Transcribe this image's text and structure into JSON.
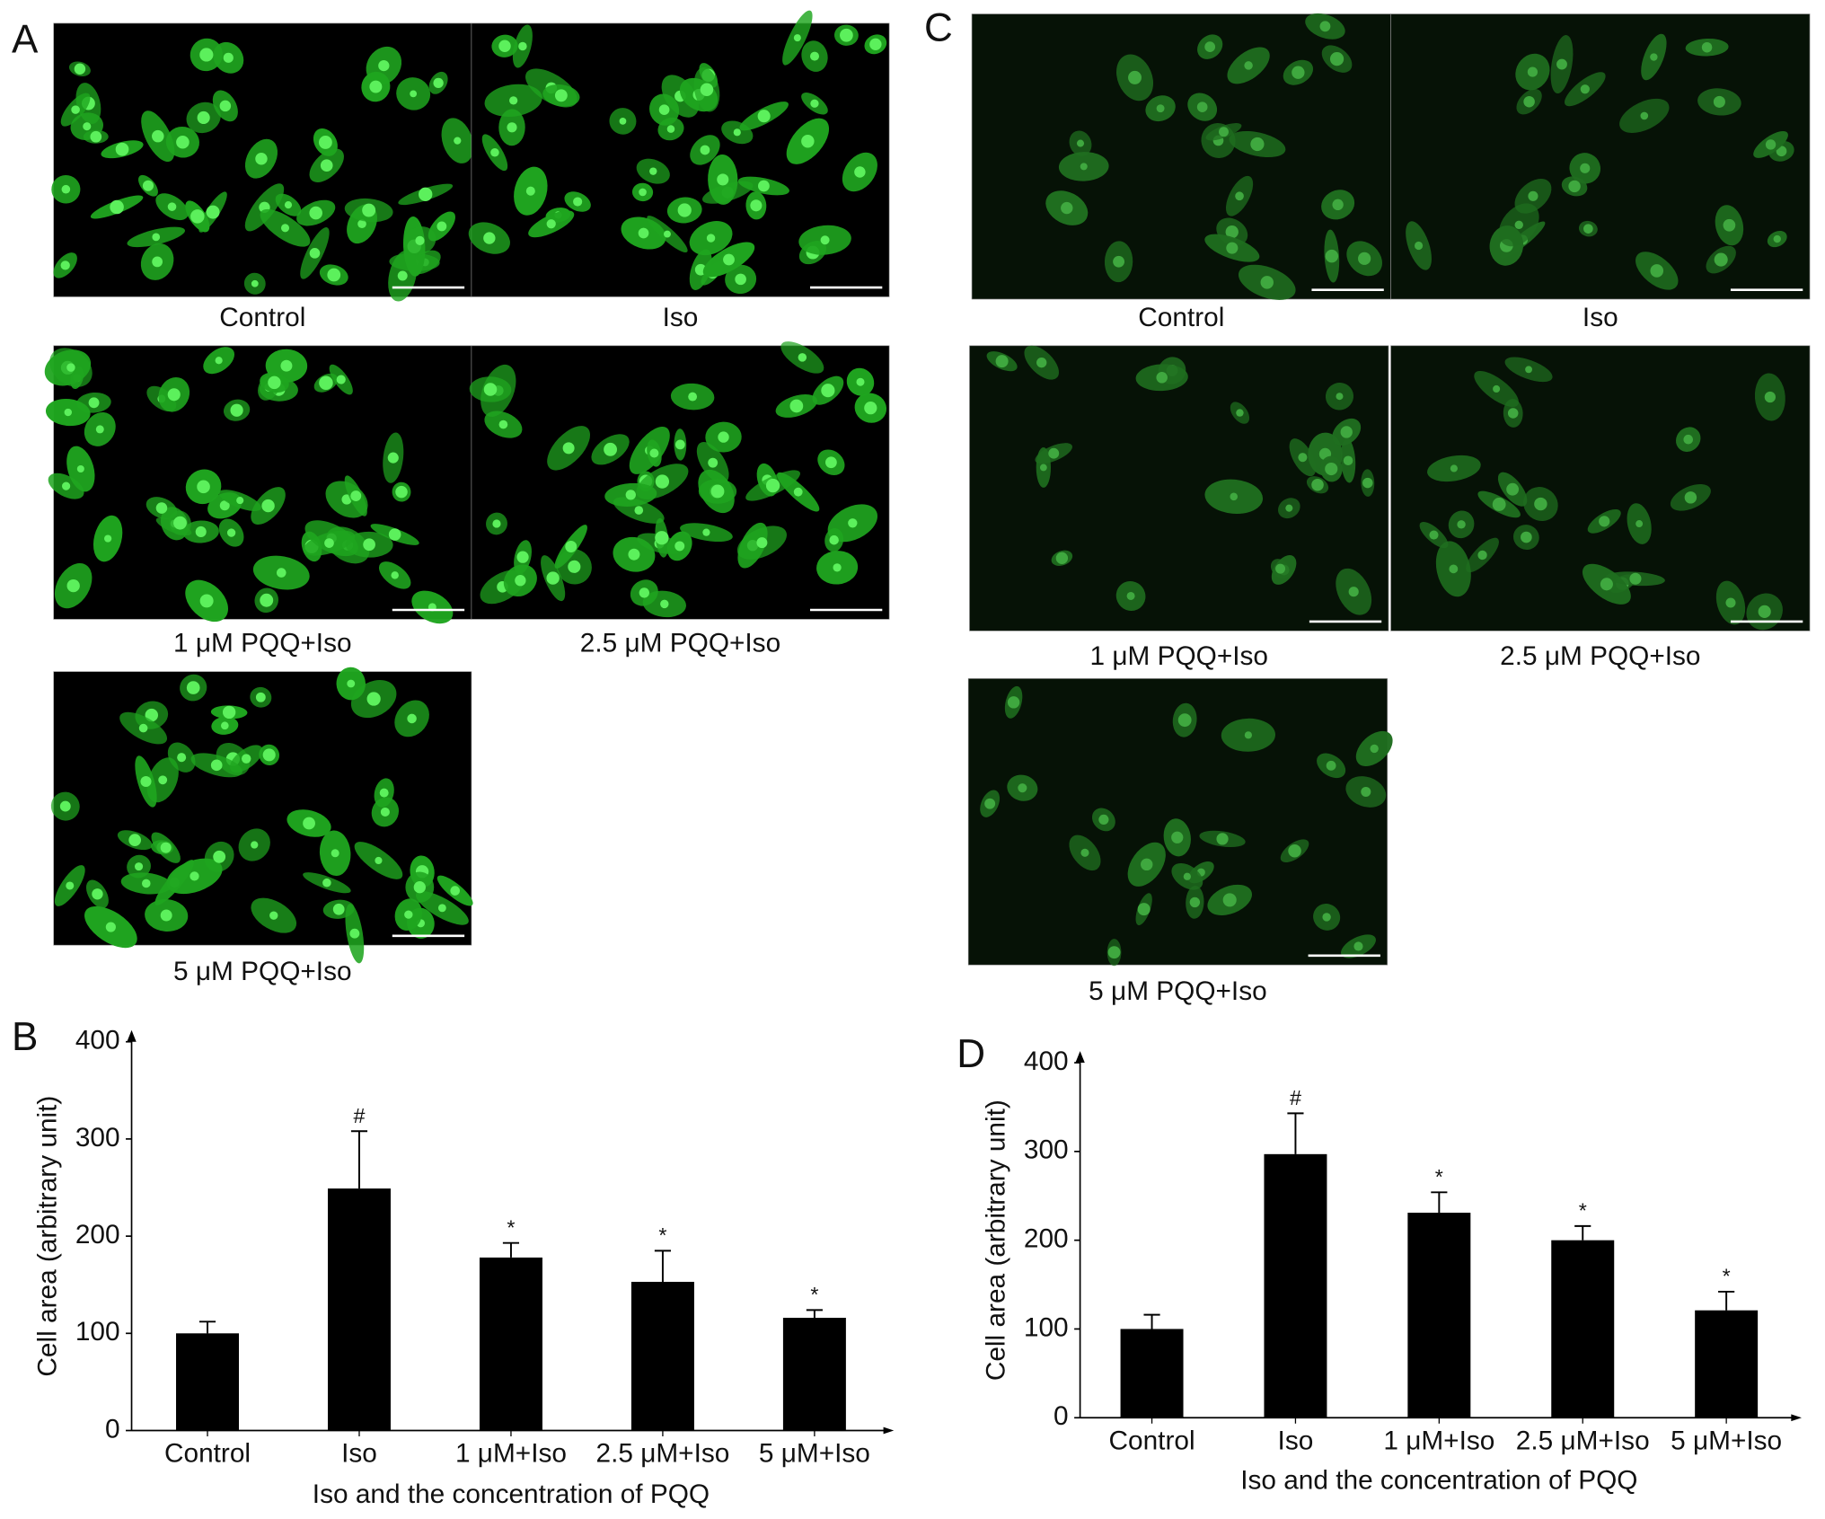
{
  "panels": [
    {
      "label": "A",
      "images": [
        "Control",
        "Iso",
        "1 μM PQQ+Iso",
        "2.5 μM PQQ+Iso",
        "5 μM PQQ+Iso"
      ]
    },
    {
      "label": "C",
      "images": [
        "Control",
        "Iso",
        "1 μM PQQ+Iso",
        "2.5 μM PQQ+Iso",
        "5 μM PQQ+Iso"
      ]
    }
  ],
  "chart_data": [
    {
      "type": "bar",
      "label": "B",
      "ylabel": "Cell area (arbitrary unit)",
      "xlabel": "Iso and the concentration of PQQ",
      "categories": [
        "Control",
        "Iso",
        "1 μM+Iso",
        "2.5 μM+Iso",
        "5 μM+Iso"
      ],
      "values": [
        100,
        249,
        178,
        153,
        116
      ],
      "errors": [
        12,
        59,
        15,
        32,
        8
      ],
      "annotations": [
        null,
        "#",
        "*",
        "*",
        "*"
      ],
      "color": "#000000",
      "ylim": [
        0,
        400
      ],
      "yticks": [
        0,
        100,
        200,
        300,
        400
      ]
    },
    {
      "type": "bar",
      "label": "D",
      "ylabel": "Cell area (arbitrary unit)",
      "xlabel": "Iso and the concentration of PQQ",
      "categories": [
        "Control",
        "Iso",
        "1 μM+Iso",
        "2.5 μM+Iso",
        "5 μM+Iso"
      ],
      "values": [
        100,
        297,
        231,
        200,
        121
      ],
      "errors": [
        16,
        46,
        23,
        16,
        21
      ],
      "annotations": [
        null,
        "#",
        "*",
        "*",
        "*"
      ],
      "color": "#000000",
      "ylim": [
        0,
        400
      ],
      "yticks": [
        0,
        100,
        200,
        300,
        400
      ]
    }
  ]
}
